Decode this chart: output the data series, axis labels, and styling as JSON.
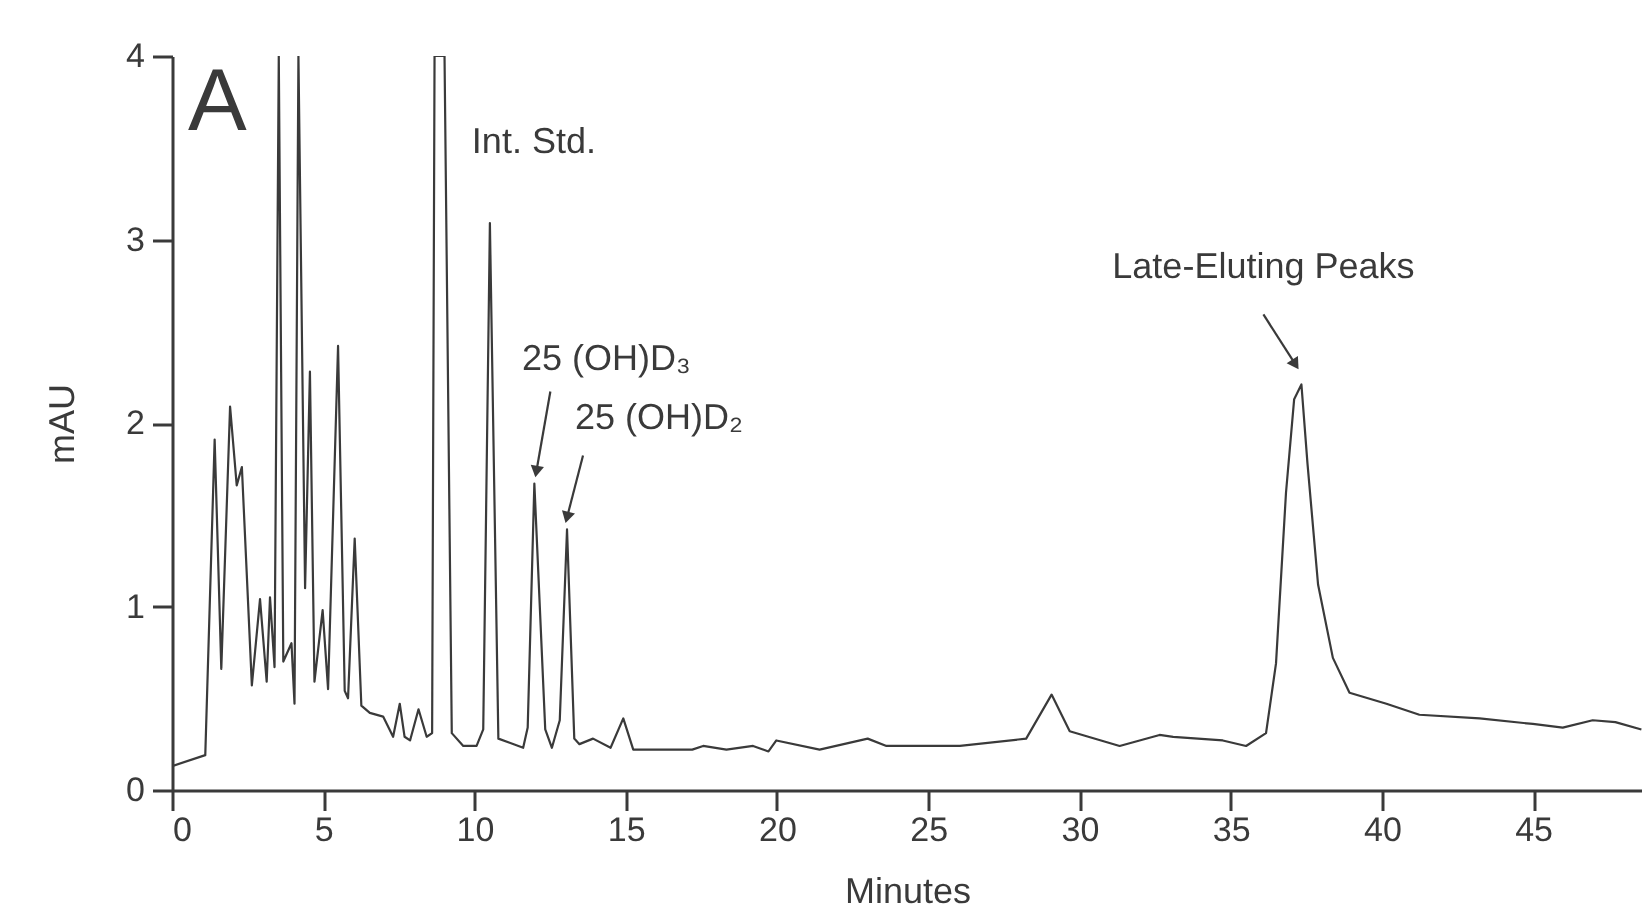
{
  "chart_data": {
    "type": "line",
    "xlabel": "Minutes",
    "ylabel": "mAU",
    "xlim": [
      0,
      48.6
    ],
    "ylim": [
      0,
      4
    ],
    "xticks": [
      0,
      5,
      10,
      15,
      20,
      25,
      30,
      35,
      40,
      45
    ],
    "yticks": [
      0,
      1,
      2,
      3,
      4
    ],
    "grid": false,
    "annotations": [
      "A",
      {
        "text": "Int. Std.",
        "x": 10.51,
        "y": 3.09
      },
      {
        "text": "25 (OH)D₃",
        "x": 11.98,
        "y": 1.67
      },
      {
        "text": "25 (OH)D₂",
        "x": 13.06,
        "y": 1.42
      },
      {
        "text": "Late-Eluting Peaks",
        "x": 37.34,
        "y": 2.21
      }
    ],
    "series": [
      {
        "color": "#3a3a3a",
        "x": [
          0,
          1.1,
          1.41,
          1.63,
          1.92,
          2.14,
          2.31,
          2.64,
          2.91,
          3.13,
          3.24,
          3.39,
          3.53,
          3.68,
          3.95,
          4.05,
          4.18,
          4.4,
          4.56,
          4.71,
          4.98,
          5.16,
          5.49,
          5.71,
          5.82,
          6.04,
          6.26,
          6.54,
          6.98,
          7.31,
          7.53,
          7.69,
          7.87,
          8.15,
          8.42,
          8.6,
          8.68,
          9.01,
          9.25,
          9.63,
          10.07,
          10.29,
          10.51,
          10.79,
          11.61,
          11.76,
          11.98,
          12.34,
          12.56,
          12.82,
          13.06,
          13.3,
          13.47,
          13.92,
          14.5,
          14.92,
          15.25,
          17.2,
          17.56,
          18.33,
          19.21,
          19.72,
          19.98,
          21.41,
          23,
          23.62,
          26.05,
          28.24,
          29.08,
          29.68,
          31.33,
          32.65,
          33.1,
          34.74,
          35.51,
          36.17,
          36.5,
          36.83,
          37.1,
          37.34,
          37.54,
          37.89,
          38.38,
          38.93,
          40.15,
          41.24,
          43.23,
          44.99,
          45.98,
          46.97,
          47.72,
          48.58
        ],
        "values": [
          0.13,
          0.19,
          1.91,
          0.66,
          2.09,
          1.66,
          1.76,
          0.57,
          1.04,
          0.59,
          1.05,
          0.67,
          4,
          0.7,
          0.8,
          0.47,
          4,
          1.1,
          2.28,
          0.59,
          0.98,
          0.55,
          2.42,
          0.54,
          0.5,
          1.37,
          0.46,
          0.42,
          0.4,
          0.29,
          0.47,
          0.29,
          0.27,
          0.44,
          0.29,
          0.31,
          4,
          4,
          0.31,
          0.24,
          0.24,
          0.33,
          3.09,
          0.28,
          0.23,
          0.34,
          1.67,
          0.33,
          0.23,
          0.38,
          1.42,
          0.28,
          0.25,
          0.28,
          0.23,
          0.39,
          0.22,
          0.22,
          0.24,
          0.22,
          0.24,
          0.21,
          0.27,
          0.22,
          0.28,
          0.24,
          0.24,
          0.28,
          0.52,
          0.32,
          0.24,
          0.3,
          0.29,
          0.27,
          0.24,
          0.31,
          0.69,
          1.62,
          2.13,
          2.21,
          1.78,
          1.12,
          0.72,
          0.53,
          0.47,
          0.41,
          0.39,
          0.36,
          0.34,
          0.38,
          0.37,
          0.33
        ]
      }
    ]
  }
}
